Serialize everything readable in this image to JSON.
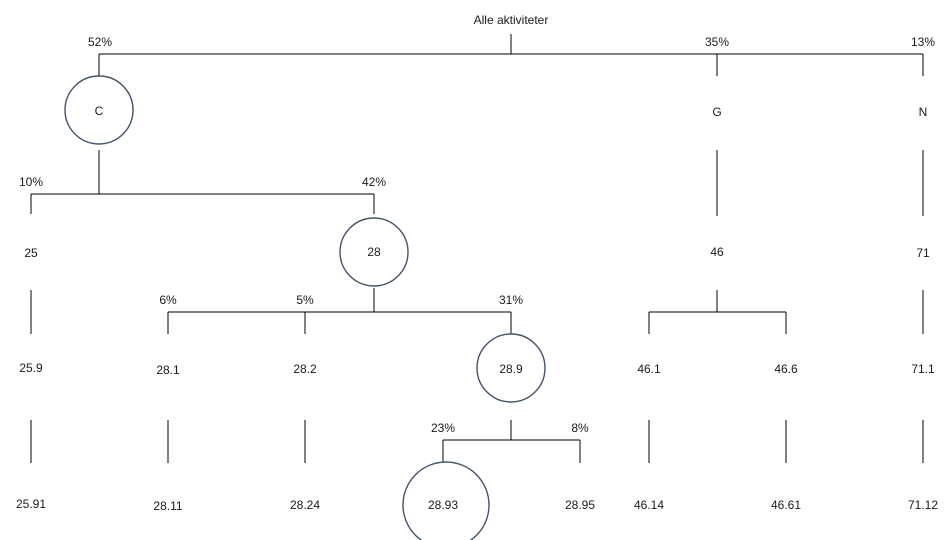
{
  "root": {
    "label": "Alle aktiviteter"
  },
  "level1": {
    "c": {
      "label": "C",
      "percent": "52%"
    },
    "g": {
      "label": "G",
      "percent": "35%"
    },
    "n": {
      "label": "N",
      "percent": "13%"
    }
  },
  "c_children": {
    "n25": {
      "label": "25",
      "percent": "10%"
    },
    "n28": {
      "label": "28",
      "percent": "42%"
    }
  },
  "g_child": {
    "label": "46"
  },
  "n_child": {
    "label": "71"
  },
  "n28_children": {
    "n28_1": {
      "label": "28.1",
      "percent": "6%"
    },
    "n28_2": {
      "label": "28.2",
      "percent": "5%"
    },
    "n28_9": {
      "label": "28.9",
      "percent": "31%"
    }
  },
  "n25_child": {
    "label": "25.9"
  },
  "n46_children": {
    "n46_1": {
      "label": "46.1"
    },
    "n46_6": {
      "label": "46.6"
    }
  },
  "n71_child": {
    "label": "71.1"
  },
  "n28_9_children": {
    "n28_93": {
      "label": "28.93",
      "percent": "23%"
    },
    "n28_95": {
      "label": "28.95",
      "percent": "8%"
    }
  },
  "leaves": {
    "n25_91": {
      "label": "25.91"
    },
    "n28_11": {
      "label": "28.11"
    },
    "n28_24": {
      "label": "28.24"
    },
    "n46_14": {
      "label": "46.14"
    },
    "n46_61": {
      "label": "46.61"
    },
    "n71_12": {
      "label": "71.12"
    }
  }
}
